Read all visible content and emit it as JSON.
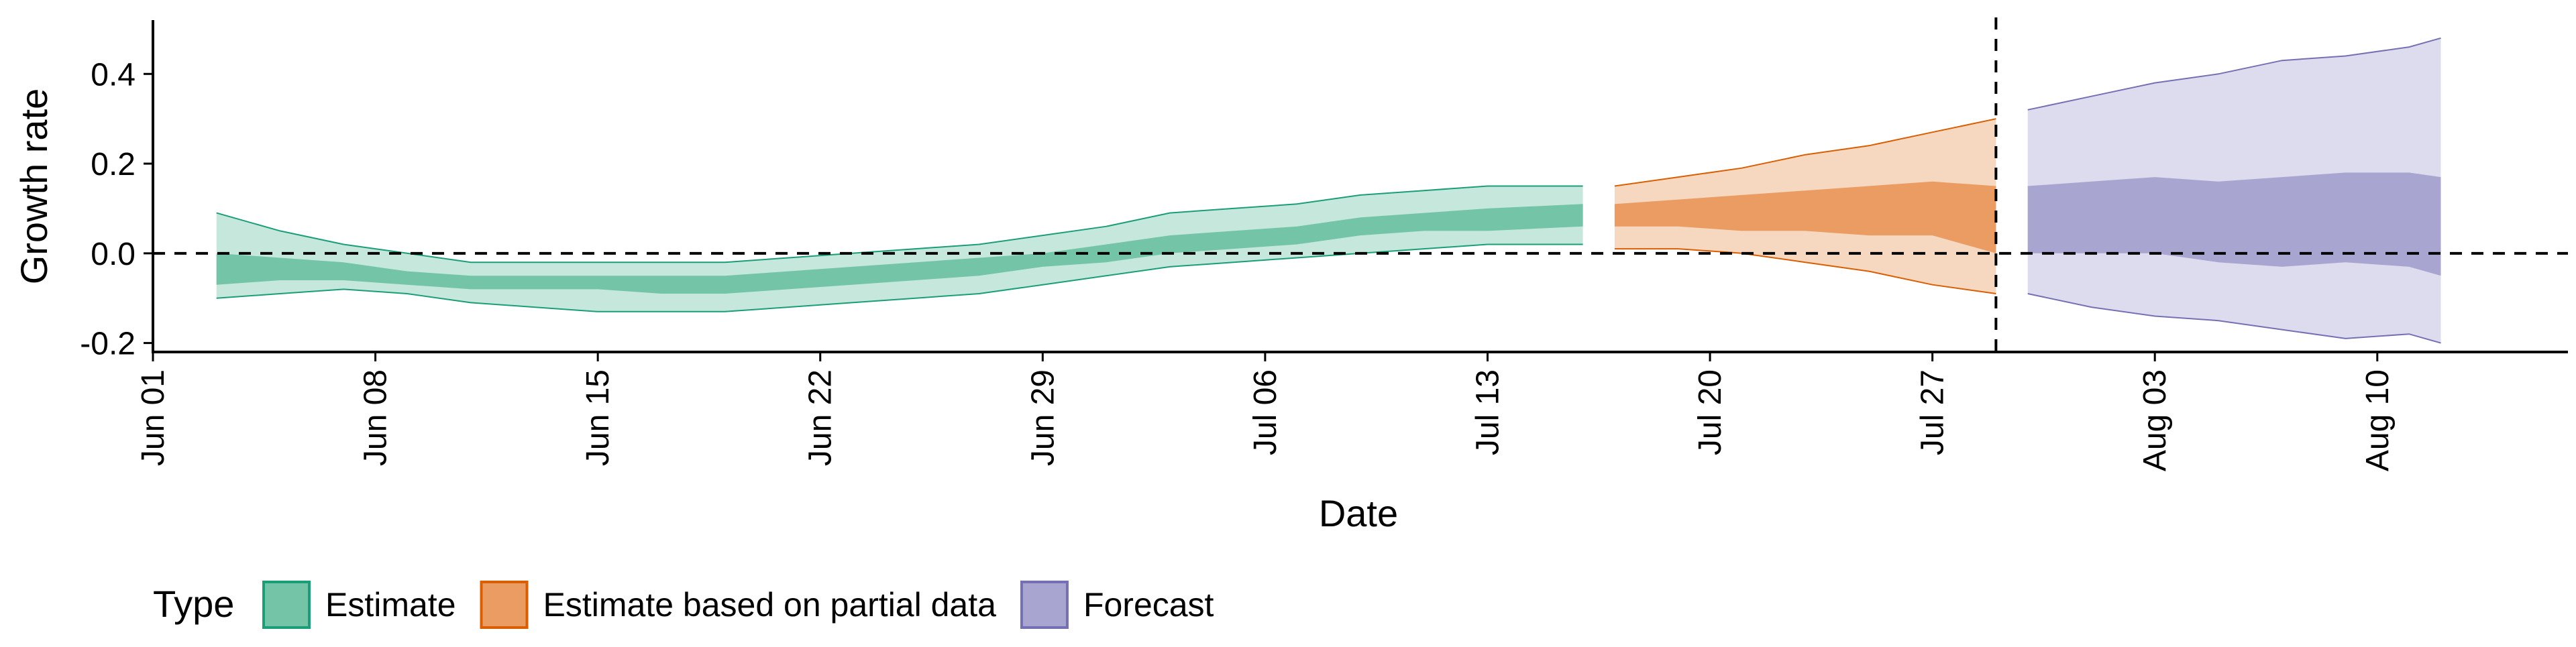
{
  "chart_data": {
    "type": "area",
    "xlabel": "Date",
    "ylabel": "Growth rate",
    "x_type": "date",
    "xlim": [
      "2020-06-01",
      "2020-08-16"
    ],
    "ylim": [
      -0.22,
      0.52
    ],
    "x_ticks": [
      {
        "date": "2020-06-01",
        "label": "Jun 01"
      },
      {
        "date": "2020-06-08",
        "label": "Jun 08"
      },
      {
        "date": "2020-06-15",
        "label": "Jun 15"
      },
      {
        "date": "2020-06-22",
        "label": "Jun 22"
      },
      {
        "date": "2020-06-29",
        "label": "Jun 29"
      },
      {
        "date": "2020-07-06",
        "label": "Jul 06"
      },
      {
        "date": "2020-07-13",
        "label": "Jul 13"
      },
      {
        "date": "2020-07-20",
        "label": "Jul 20"
      },
      {
        "date": "2020-07-27",
        "label": "Jul 27"
      },
      {
        "date": "2020-08-03",
        "label": "Aug 03"
      },
      {
        "date": "2020-08-10",
        "label": "Aug 10"
      }
    ],
    "y_ticks": [
      {
        "value": 0.4,
        "label": "0.4"
      },
      {
        "value": 0.2,
        "label": "0.2"
      },
      {
        "value": 0.0,
        "label": "0.0"
      },
      {
        "value": -0.2,
        "label": "-0.2"
      }
    ],
    "reference_lines": {
      "horizontal_y": 0.0,
      "vertical_date": "2020-07-29",
      "style": "dashed"
    },
    "grid": false,
    "legend": {
      "title": "Type",
      "position": "bottom-left",
      "items": [
        {
          "label": "Estimate",
          "fill": "#74c4a8",
          "stroke": "#1b9e77"
        },
        {
          "label": "Estimate based on partial data",
          "fill": "#eb9c62",
          "stroke": "#d95f02"
        },
        {
          "label": "Forecast",
          "fill": "#a9a5d1",
          "stroke": "#7570b3"
        }
      ]
    },
    "series": [
      {
        "name": "Estimate",
        "outer_fill": "#c6e8dc",
        "inner_fill": "#74c4a8",
        "stroke": "#1b9e77",
        "points": [
          {
            "date": "2020-06-03",
            "outer_lo": -0.1,
            "inner_lo": -0.07,
            "inner_hi": 0.0,
            "outer_hi": 0.09
          },
          {
            "date": "2020-06-05",
            "outer_lo": -0.09,
            "inner_lo": -0.06,
            "inner_hi": -0.01,
            "outer_hi": 0.05
          },
          {
            "date": "2020-06-07",
            "outer_lo": -0.08,
            "inner_lo": -0.06,
            "inner_hi": -0.02,
            "outer_hi": 0.02
          },
          {
            "date": "2020-06-09",
            "outer_lo": -0.09,
            "inner_lo": -0.07,
            "inner_hi": -0.04,
            "outer_hi": 0.0
          },
          {
            "date": "2020-06-11",
            "outer_lo": -0.11,
            "inner_lo": -0.08,
            "inner_hi": -0.05,
            "outer_hi": -0.02
          },
          {
            "date": "2020-06-13",
            "outer_lo": -0.12,
            "inner_lo": -0.08,
            "inner_hi": -0.05,
            "outer_hi": -0.02
          },
          {
            "date": "2020-06-15",
            "outer_lo": -0.13,
            "inner_lo": -0.08,
            "inner_hi": -0.05,
            "outer_hi": -0.02
          },
          {
            "date": "2020-06-17",
            "outer_lo": -0.13,
            "inner_lo": -0.09,
            "inner_hi": -0.05,
            "outer_hi": -0.02
          },
          {
            "date": "2020-06-19",
            "outer_lo": -0.13,
            "inner_lo": -0.09,
            "inner_hi": -0.05,
            "outer_hi": -0.02
          },
          {
            "date": "2020-06-21",
            "outer_lo": -0.12,
            "inner_lo": -0.08,
            "inner_hi": -0.04,
            "outer_hi": -0.01
          },
          {
            "date": "2020-06-23",
            "outer_lo": -0.11,
            "inner_lo": -0.07,
            "inner_hi": -0.03,
            "outer_hi": 0.0
          },
          {
            "date": "2020-06-25",
            "outer_lo": -0.1,
            "inner_lo": -0.06,
            "inner_hi": -0.02,
            "outer_hi": 0.01
          },
          {
            "date": "2020-06-27",
            "outer_lo": -0.09,
            "inner_lo": -0.05,
            "inner_hi": -0.01,
            "outer_hi": 0.02
          },
          {
            "date": "2020-06-29",
            "outer_lo": -0.07,
            "inner_lo": -0.03,
            "inner_hi": 0.0,
            "outer_hi": 0.04
          },
          {
            "date": "2020-07-01",
            "outer_lo": -0.05,
            "inner_lo": -0.02,
            "inner_hi": 0.02,
            "outer_hi": 0.06
          },
          {
            "date": "2020-07-03",
            "outer_lo": -0.03,
            "inner_lo": 0.0,
            "inner_hi": 0.04,
            "outer_hi": 0.09
          },
          {
            "date": "2020-07-05",
            "outer_lo": -0.02,
            "inner_lo": 0.01,
            "inner_hi": 0.05,
            "outer_hi": 0.1
          },
          {
            "date": "2020-07-07",
            "outer_lo": -0.01,
            "inner_lo": 0.02,
            "inner_hi": 0.06,
            "outer_hi": 0.11
          },
          {
            "date": "2020-07-09",
            "outer_lo": 0.0,
            "inner_lo": 0.04,
            "inner_hi": 0.08,
            "outer_hi": 0.13
          },
          {
            "date": "2020-07-11",
            "outer_lo": 0.01,
            "inner_lo": 0.05,
            "inner_hi": 0.09,
            "outer_hi": 0.14
          },
          {
            "date": "2020-07-13",
            "outer_lo": 0.02,
            "inner_lo": 0.05,
            "inner_hi": 0.1,
            "outer_hi": 0.15
          },
          {
            "date": "2020-07-16",
            "outer_lo": 0.02,
            "inner_lo": 0.06,
            "inner_hi": 0.11,
            "outer_hi": 0.15
          }
        ]
      },
      {
        "name": "Estimate based on partial data",
        "outer_fill": "#f6d7c0",
        "inner_fill": "#eb9c62",
        "stroke": "#d95f02",
        "points": [
          {
            "date": "2020-07-17",
            "outer_lo": 0.01,
            "inner_lo": 0.06,
            "inner_hi": 0.11,
            "outer_hi": 0.15
          },
          {
            "date": "2020-07-19",
            "outer_lo": 0.01,
            "inner_lo": 0.06,
            "inner_hi": 0.12,
            "outer_hi": 0.17
          },
          {
            "date": "2020-07-21",
            "outer_lo": 0.0,
            "inner_lo": 0.05,
            "inner_hi": 0.13,
            "outer_hi": 0.19
          },
          {
            "date": "2020-07-23",
            "outer_lo": -0.02,
            "inner_lo": 0.05,
            "inner_hi": 0.14,
            "outer_hi": 0.22
          },
          {
            "date": "2020-07-25",
            "outer_lo": -0.04,
            "inner_lo": 0.04,
            "inner_hi": 0.15,
            "outer_hi": 0.24
          },
          {
            "date": "2020-07-27",
            "outer_lo": -0.07,
            "inner_lo": 0.04,
            "inner_hi": 0.16,
            "outer_hi": 0.27
          },
          {
            "date": "2020-07-29",
            "outer_lo": -0.09,
            "inner_lo": 0.0,
            "inner_hi": 0.15,
            "outer_hi": 0.3
          }
        ]
      },
      {
        "name": "Forecast",
        "outer_fill": "#dddcee",
        "inner_fill": "#a9a5d1",
        "stroke": "#7570b3",
        "points": [
          {
            "date": "2020-07-30",
            "outer_lo": -0.09,
            "inner_lo": 0.0,
            "inner_hi": 0.15,
            "outer_hi": 0.32
          },
          {
            "date": "2020-08-01",
            "outer_lo": -0.12,
            "inner_lo": 0.0,
            "inner_hi": 0.16,
            "outer_hi": 0.35
          },
          {
            "date": "2020-08-03",
            "outer_lo": -0.14,
            "inner_lo": 0.0,
            "inner_hi": 0.17,
            "outer_hi": 0.38
          },
          {
            "date": "2020-08-05",
            "outer_lo": -0.15,
            "inner_lo": -0.02,
            "inner_hi": 0.16,
            "outer_hi": 0.4
          },
          {
            "date": "2020-08-07",
            "outer_lo": -0.17,
            "inner_lo": -0.03,
            "inner_hi": 0.17,
            "outer_hi": 0.43
          },
          {
            "date": "2020-08-09",
            "outer_lo": -0.19,
            "inner_lo": -0.02,
            "inner_hi": 0.18,
            "outer_hi": 0.44
          },
          {
            "date": "2020-08-11",
            "outer_lo": -0.18,
            "inner_lo": -0.03,
            "inner_hi": 0.18,
            "outer_hi": 0.46
          },
          {
            "date": "2020-08-12",
            "outer_lo": -0.2,
            "inner_lo": -0.05,
            "inner_hi": 0.17,
            "outer_hi": 0.48
          }
        ]
      }
    ]
  }
}
